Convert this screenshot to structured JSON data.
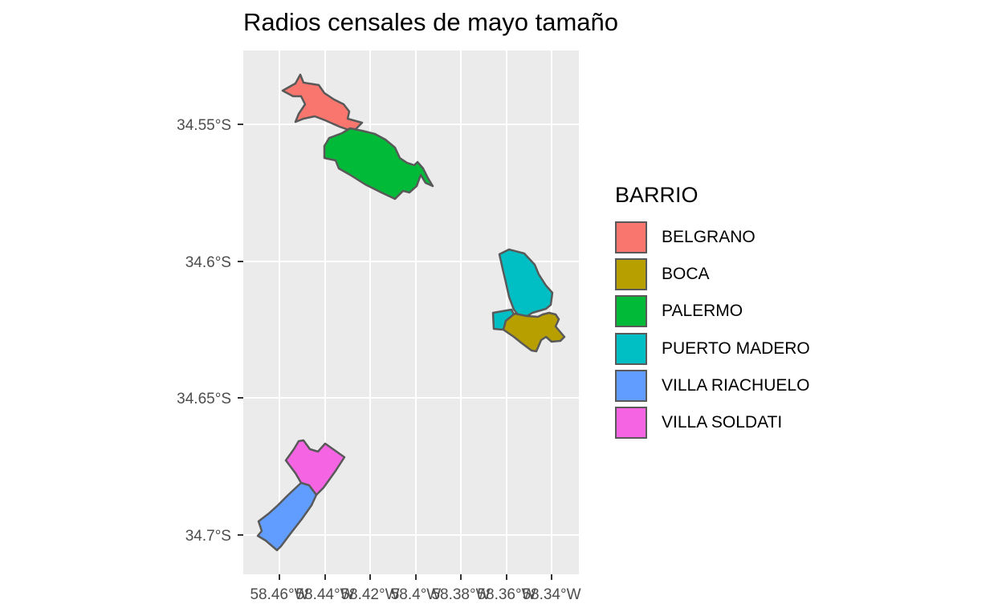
{
  "title": "Radios censales de mayo tamaño",
  "y_axis_ticks": [
    "34.55°S",
    "34.6°S",
    "34.65°S",
    "34.7°S"
  ],
  "x_axis_ticks": [
    "58.46°W",
    "58.44°W",
    "58.42°W",
    "58.4°W",
    "58.38°W",
    "58.36°W",
    "58.34°W"
  ],
  "legend": {
    "title": "BARRIO",
    "items": [
      {
        "label": "BELGRANO",
        "color": "#F8766D"
      },
      {
        "label": "BOCA",
        "color": "#B79F00"
      },
      {
        "label": "PALERMO",
        "color": "#00BA38"
      },
      {
        "label": "PUERTO MADERO",
        "color": "#00BFC4"
      },
      {
        "label": "VILLA RIACHUELO",
        "color": "#619CFF"
      },
      {
        "label": "VILLA SOLDATI",
        "color": "#F564E3"
      }
    ]
  },
  "panel_background": "#EBEBEB",
  "grid_color": "#FFFFFF",
  "outline_color": "#595959"
}
